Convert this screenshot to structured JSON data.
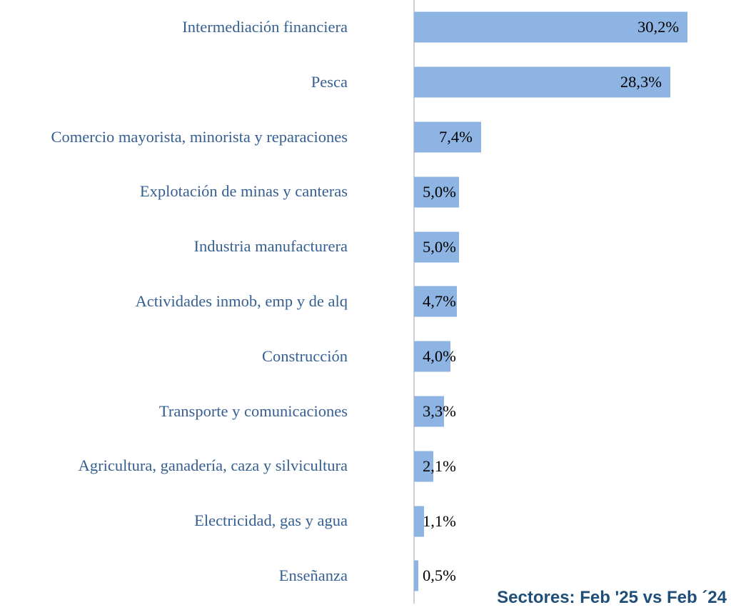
{
  "chart_data": {
    "type": "bar",
    "orientation": "horizontal",
    "title": "",
    "xlabel": "",
    "ylabel": "",
    "xlim": [
      0,
      35
    ],
    "grid": false,
    "legend": "none",
    "bar_color": "#8DB4E2",
    "categories": [
      "Intermediación financiera",
      "Pesca",
      "Comercio mayorista, minorista y reparaciones",
      "Explotación de minas y canteras",
      "Industria manufacturera",
      "Actividades inmob, emp y de alq",
      "Construcción",
      "Transporte y comunicaciones",
      "Agricultura, ganadería, caza y silvicultura",
      "Electricidad, gas y agua",
      "Enseñanza"
    ],
    "values": [
      30.2,
      28.3,
      7.4,
      5.0,
      5.0,
      4.7,
      4.0,
      3.3,
      2.1,
      1.1,
      0.5
    ],
    "value_labels": [
      "30,2%",
      "28,3%",
      "7,4%",
      "5,0%",
      "5,0%",
      "4,7%",
      "4,0%",
      "3,3%",
      "2,1%",
      "1,1%",
      "0,5%"
    ]
  },
  "caption": {
    "text": "Sectores: Feb '25 vs Feb ´24"
  },
  "colors": {
    "bar": "#8DB4E2",
    "category_label": "#365F91",
    "value_label": "#000000",
    "axis_line": "#CFCFCF",
    "caption": "#1F4E79",
    "background": "#FFFFFF"
  }
}
